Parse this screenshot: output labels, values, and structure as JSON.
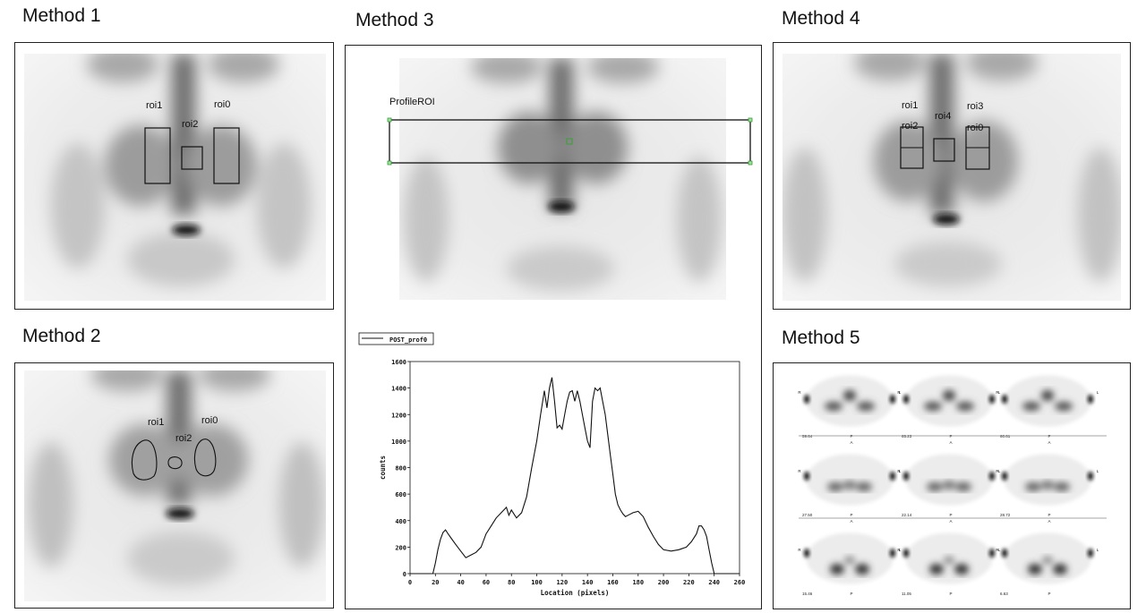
{
  "method1": {
    "heading": "Method 1",
    "rois": [
      "roi1",
      "roi2",
      "roi0"
    ]
  },
  "method2": {
    "heading": "Method 2",
    "rois": [
      "roi1",
      "roi2",
      "roi0"
    ]
  },
  "method3": {
    "heading": "Method 3",
    "profile_label": "ProfileROI",
    "legend": "POST_prof0"
  },
  "method4": {
    "heading": "Method 4",
    "rois": [
      "roi1",
      "roi2",
      "roi4",
      "roi3",
      "roi0"
    ]
  },
  "method5": {
    "heading": "Method 5",
    "rows": [
      {
        "values": [
          "59.64",
          "65.23",
          "60.61"
        ]
      },
      {
        "values": [
          "27.50",
          "22.14",
          "28.72"
        ]
      },
      {
        "values": [
          "15.46",
          "11.05",
          "6.63"
        ]
      }
    ],
    "side_left": "R",
    "side_right": "L",
    "marker_top": "P",
    "marker_bottom": "A"
  },
  "chart_data": {
    "type": "line",
    "title": "",
    "xlabel": "Location (pixels)",
    "ylabel": "counts",
    "xlim": [
      0,
      260
    ],
    "ylim": [
      0,
      1600
    ],
    "xticks": [
      0,
      20,
      40,
      60,
      80,
      100,
      120,
      140,
      160,
      180,
      200,
      220,
      240,
      260
    ],
    "yticks": [
      0,
      200,
      400,
      600,
      800,
      1000,
      1200,
      1400,
      1600
    ],
    "legend_position": "top-left",
    "series": [
      {
        "name": "POST_prof0",
        "x": [
          0,
          18,
          20,
          22,
          24,
          26,
          28,
          30,
          33,
          36,
          40,
          44,
          48,
          52,
          56,
          60,
          64,
          68,
          72,
          76,
          78,
          80,
          84,
          88,
          92,
          96,
          100,
          103,
          106,
          108,
          110,
          112,
          114,
          116,
          118,
          120,
          122,
          124,
          126,
          128,
          130,
          132,
          134,
          136,
          138,
          140,
          142,
          144,
          146,
          148,
          150,
          152,
          154,
          156,
          158,
          160,
          162,
          164,
          166,
          168,
          170,
          172,
          176,
          180,
          184,
          188,
          192,
          196,
          200,
          206,
          212,
          218,
          222,
          226,
          228,
          230,
          232,
          234,
          236,
          238,
          240,
          242,
          260
        ],
        "y": [
          0,
          0,
          80,
          180,
          260,
          310,
          330,
          300,
          260,
          220,
          170,
          120,
          140,
          160,
          200,
          300,
          360,
          420,
          460,
          500,
          440,
          480,
          420,
          460,
          580,
          800,
          1000,
          1200,
          1380,
          1250,
          1400,
          1480,
          1300,
          1100,
          1120,
          1090,
          1200,
          1300,
          1370,
          1380,
          1300,
          1380,
          1300,
          1200,
          1100,
          1000,
          950,
          1300,
          1400,
          1380,
          1400,
          1300,
          1200,
          1050,
          900,
          750,
          600,
          520,
          480,
          450,
          430,
          440,
          460,
          470,
          430,
          350,
          280,
          220,
          180,
          170,
          180,
          200,
          240,
          300,
          360,
          360,
          330,
          280,
          180,
          80,
          0,
          0,
          0
        ]
      }
    ]
  }
}
